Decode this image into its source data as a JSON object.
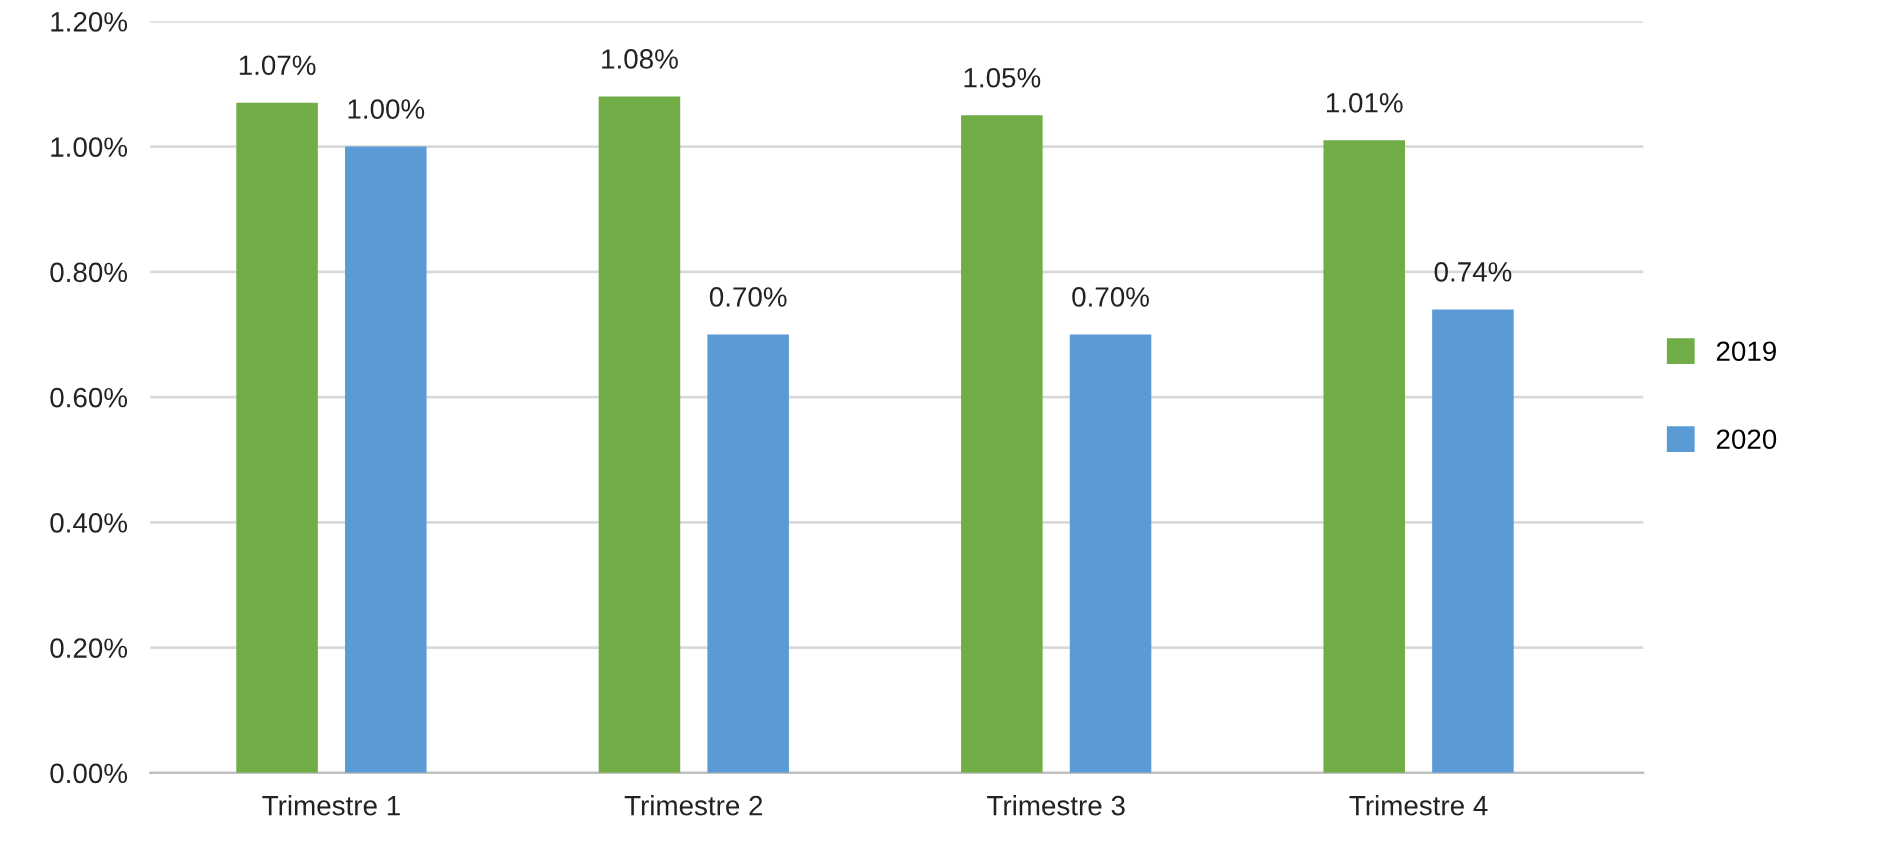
{
  "chart_data": {
    "type": "bar",
    "categories": [
      "Trimestre 1",
      "Trimestre 2",
      "Trimestre 3",
      "Trimestre 4"
    ],
    "series": [
      {
        "name": "2019",
        "color": "#70ad47",
        "values": [
          1.07,
          1.08,
          1.05,
          1.01
        ],
        "value_labels": [
          "1.07%",
          "1.08%",
          "1.05%",
          "1.01%"
        ]
      },
      {
        "name": "2020",
        "color": "#5b9bd5",
        "values": [
          1.0,
          0.7,
          0.7,
          0.74
        ],
        "value_labels": [
          "1.00%",
          "0.70%",
          "0.70%",
          "0.74%"
        ]
      }
    ],
    "ylim": [
      0,
      1.2
    ],
    "yticks": [
      {
        "value": 0,
        "label": "0.00%"
      },
      {
        "value": 0.2,
        "label": "0.20%"
      },
      {
        "value": 0.4,
        "label": "0.40%"
      },
      {
        "value": 0.6,
        "label": "0.60%"
      },
      {
        "value": 0.8,
        "label": "0.80%"
      },
      {
        "value": 1.0,
        "label": "1.00%"
      },
      {
        "value": 1.2,
        "label": "1.20%"
      }
    ],
    "grid": "y",
    "legend": "right"
  }
}
